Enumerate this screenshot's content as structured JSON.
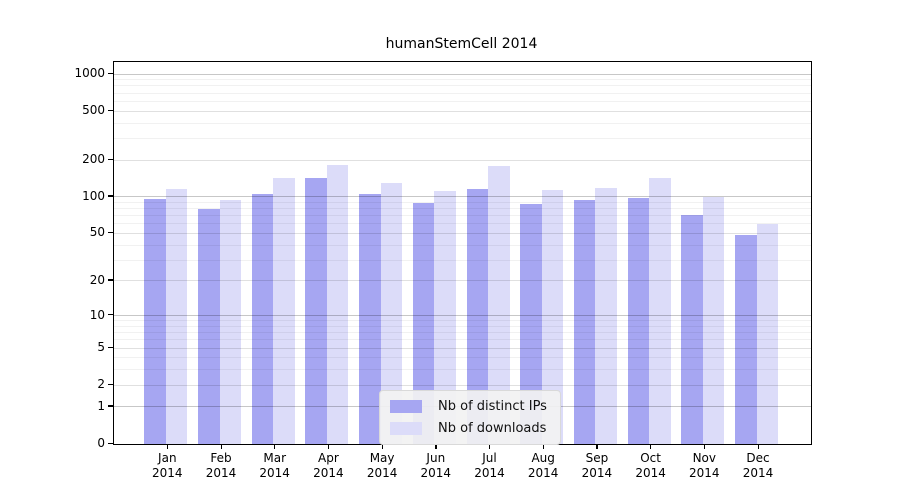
{
  "chart_data": {
    "type": "bar",
    "title": "humanStemCell 2014",
    "categories": [
      "Jan 2014",
      "Feb 2014",
      "Mar 2014",
      "Apr 2014",
      "May 2014",
      "Jun 2014",
      "Jul 2014",
      "Aug 2014",
      "Sep 2014",
      "Oct 2014",
      "Nov 2014",
      "Dec 2014"
    ],
    "series": [
      {
        "name": "Nb of distinct IPs",
        "color": "#a6a6f2",
        "values": [
          96,
          79,
          105,
          142,
          105,
          89,
          115,
          88,
          95,
          98,
          71,
          49
        ]
      },
      {
        "name": "Nb of downloads",
        "color": "#dcdcf9",
        "values": [
          116,
          94,
          143,
          183,
          130,
          111,
          179,
          114,
          119,
          143,
          99,
          60
        ]
      }
    ],
    "xlabel": "",
    "ylabel": "",
    "yscale": "log1p",
    "ylim": [
      0,
      1200
    ],
    "yticks": [
      1000,
      500,
      200,
      100,
      50,
      20,
      10,
      5,
      2,
      1,
      0
    ],
    "gridlines": {
      "major": [
        1,
        10,
        100,
        1000
      ],
      "mid": [
        2,
        5,
        20,
        50,
        200,
        500
      ],
      "minor": [
        3,
        4,
        6,
        7,
        8,
        9,
        30,
        40,
        60,
        70,
        80,
        90,
        300,
        400,
        600,
        700,
        800,
        900
      ]
    },
    "grid": "horizontal",
    "legend_position": "bottom-center"
  },
  "colors": {
    "axis": "#000000",
    "grid_major": "rgba(0,0,0,0.22)",
    "grid_mid": "rgba(0,0,0,0.12)",
    "grid_minor": "rgba(0,0,0,0.055)",
    "legend_bg": "rgba(242,242,242,0.92)",
    "legend_border": "#d9d9d9",
    "text": "#000000"
  }
}
